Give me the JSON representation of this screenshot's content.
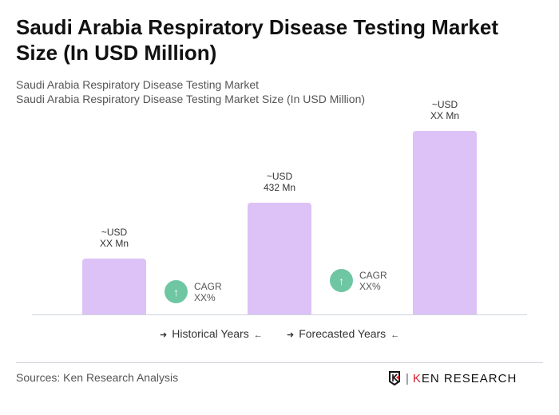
{
  "title": "Saudi Arabia Respiratory Disease Testing Market Size (In USD Million)",
  "subtitle1": "Saudi Arabia Respiratory Disease Testing Market",
  "subtitle2": "Saudi Arabia Respiratory Disease Testing Market Size (In USD Million)",
  "chart_data": {
    "type": "bar",
    "categories": [
      "",
      "",
      ""
    ],
    "values": [
      216,
      432,
      710
    ],
    "data_labels": [
      [
        "~USD",
        "XX Mn"
      ],
      [
        "~USD",
        "432 Mn"
      ],
      [
        "~USD",
        "XX Mn"
      ]
    ],
    "bar_color": "#dcc2f7",
    "cagr": [
      {
        "label": "CAGR",
        "value": "XX%"
      },
      {
        "label": "CAGR",
        "value": "XX%"
      }
    ],
    "cagr_color": "#6fc6a2",
    "legend": [
      "Historical Years",
      "Forecasted Years"
    ],
    "grid": false
  },
  "source": "Sources: Ken Research Analysis",
  "logo_text": "KEN RESEARCH"
}
